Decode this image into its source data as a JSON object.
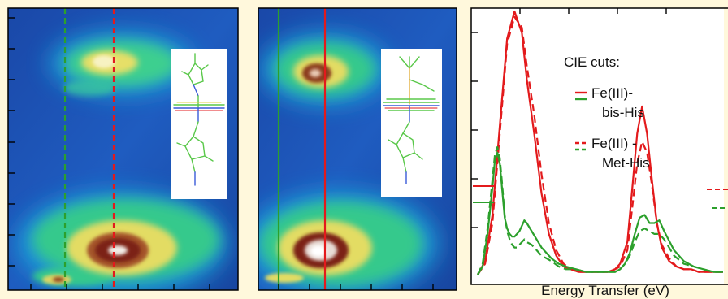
{
  "chart_data": [
    {
      "type": "heatmap",
      "panel": "left RIXS map (Fe(III)-Met-His)",
      "cuts": [
        {
          "series": "Met-His",
          "color": "#2ca02c",
          "style": "dashed",
          "x_frac": 0.24
        },
        {
          "series": "Met-His",
          "color": "#e31a1c",
          "style": "dashed",
          "x_frac": 0.47
        }
      ],
      "inset": "structure-Met-His",
      "xticks": 6,
      "yticks": 8
    },
    {
      "type": "heatmap",
      "panel": "middle RIXS map (Fe(III)-bis-His)",
      "cuts": [
        {
          "series": "bis-His",
          "color": "#2ca02c",
          "style": "solid",
          "x_frac": 0.1
        },
        {
          "series": "bis-His",
          "color": "#e31a1c",
          "style": "solid",
          "x_frac": 0.37
        }
      ],
      "inset": "structure-bis-His",
      "xticks": 6,
      "yticks": 0
    },
    {
      "type": "line",
      "panel": "right CIE cuts",
      "xlabel": "Energy Transfer (eV)",
      "ylabel": "",
      "xlim": [
        0,
        100
      ],
      "ylim": [
        0,
        100
      ],
      "legend": {
        "title": "CIE cuts:",
        "entries": [
          {
            "text_lines": [
              "Fe(III)-",
              "bis-His"
            ],
            "style": "solid"
          },
          {
            "text_lines": [
              "Fe(III) -",
              "Met-His"
            ],
            "style": "dashed"
          }
        ],
        "placement": "top-center"
      },
      "series": [
        {
          "color": "#e31a1c",
          "style": "solid",
          "x": [
            0,
            3,
            6,
            9,
            12,
            15,
            18,
            20,
            23,
            26,
            29,
            32,
            35,
            38,
            41,
            44,
            47,
            50,
            53,
            56,
            58,
            61,
            63,
            65,
            67,
            69,
            71,
            73,
            75,
            78,
            81,
            84,
            87,
            90,
            93,
            96,
            100
          ],
          "y": [
            3,
            8,
            25,
            58,
            90,
            100,
            92,
            75,
            55,
            33,
            18,
            10,
            6,
            5,
            4,
            4,
            4,
            4,
            4,
            5,
            7,
            15,
            35,
            55,
            65,
            55,
            38,
            22,
            13,
            8,
            6,
            5,
            5,
            4,
            4,
            4,
            4
          ]
        },
        {
          "color": "#e31a1c",
          "style": "dashed",
          "x": [
            0,
            3,
            6,
            9,
            12,
            15,
            18,
            20,
            23,
            26,
            29,
            32,
            35,
            38,
            41,
            44,
            47,
            50,
            53,
            56,
            58,
            61,
            63,
            65,
            67,
            69,
            71,
            73,
            75,
            78,
            81,
            84,
            87,
            90,
            93,
            96,
            100
          ],
          "y": [
            3,
            7,
            22,
            55,
            88,
            98,
            94,
            80,
            62,
            40,
            22,
            12,
            7,
            5,
            4,
            4,
            4,
            4,
            4,
            5,
            6,
            12,
            28,
            44,
            52,
            48,
            36,
            22,
            14,
            9,
            6,
            5,
            5,
            4,
            4,
            4,
            4
          ]
        },
        {
          "color": "#2ca02c",
          "style": "solid",
          "x": [
            0,
            2,
            4,
            6,
            7,
            8,
            9,
            10,
            11,
            12,
            13,
            14,
            15,
            16,
            17,
            18,
            19,
            20,
            22,
            24,
            26,
            28,
            30,
            33,
            36,
            40,
            44,
            48,
            52,
            56,
            58,
            60,
            62,
            64,
            66,
            68,
            70,
            72,
            74,
            76,
            80,
            84,
            88,
            92,
            96,
            100
          ],
          "y": [
            3,
            6,
            18,
            35,
            45,
            48,
            44,
            34,
            24,
            20,
            18,
            17,
            17,
            18,
            19,
            21,
            23,
            22,
            19,
            16,
            13,
            11,
            9,
            7,
            6,
            5,
            4,
            4,
            4,
            4,
            5,
            7,
            11,
            18,
            24,
            25,
            22,
            22,
            23,
            19,
            12,
            8,
            6,
            5,
            4,
            4
          ]
        },
        {
          "color": "#2ca02c",
          "style": "dashed",
          "x": [
            0,
            2,
            4,
            6,
            7,
            8,
            9,
            10,
            11,
            12,
            13,
            14,
            15,
            16,
            17,
            18,
            19,
            20,
            22,
            24,
            26,
            28,
            30,
            33,
            36,
            40,
            44,
            48,
            52,
            56,
            58,
            60,
            62,
            64,
            66,
            68,
            70,
            72,
            74,
            76,
            80,
            84,
            88,
            92,
            96,
            100
          ],
          "y": [
            3,
            7,
            20,
            38,
            47,
            50,
            46,
            36,
            25,
            19,
            16,
            14,
            13,
            13,
            14,
            15,
            16,
            15,
            14,
            12,
            10,
            9,
            8,
            6,
            5,
            5,
            4,
            4,
            4,
            4,
            5,
            7,
            10,
            15,
            19,
            20,
            19,
            18,
            18,
            16,
            10,
            7,
            6,
            5,
            4,
            4
          ]
        }
      ]
    }
  ]
}
